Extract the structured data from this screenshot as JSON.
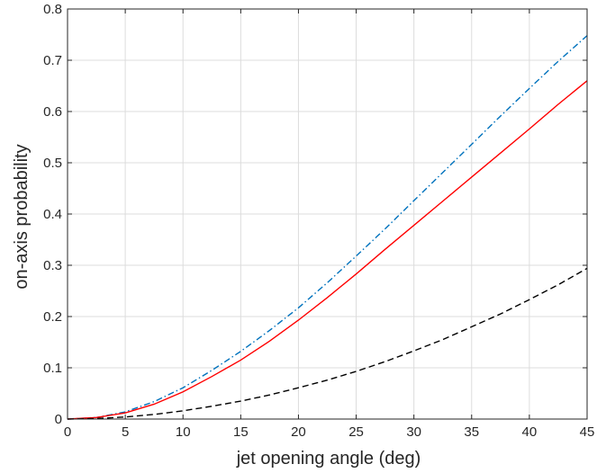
{
  "chart_data": {
    "type": "line",
    "title": "",
    "xlabel": "jet opening angle (deg)",
    "ylabel": "on-axis probability",
    "xlim": [
      0,
      45
    ],
    "ylim": [
      0,
      0.8
    ],
    "xticks": [
      0,
      5,
      10,
      15,
      20,
      25,
      30,
      35,
      40,
      45
    ],
    "yticks": [
      0,
      0.1,
      0.2,
      0.3,
      0.4,
      0.5,
      0.6,
      0.7,
      0.8
    ],
    "xtick_labels": [
      "0",
      "5",
      "10",
      "15",
      "20",
      "25",
      "30",
      "35",
      "40",
      "45"
    ],
    "ytick_labels": [
      "0",
      "0.1",
      "0.2",
      "0.3",
      "0.4",
      "0.5",
      "0.6",
      "0.7",
      "0.8"
    ],
    "grid": true,
    "legend": "none",
    "x": [
      0,
      2.5,
      5,
      7.5,
      10,
      12.5,
      15,
      17.5,
      20,
      22.5,
      25,
      27.5,
      30,
      32.5,
      35,
      37.5,
      40,
      42.5,
      45
    ],
    "series": [
      {
        "color": "#0072bd",
        "dash": "dash-dot",
        "values": [
          0,
          0.003,
          0.014,
          0.034,
          0.061,
          0.095,
          0.132,
          0.173,
          0.217,
          0.266,
          0.318,
          0.371,
          0.426,
          0.481,
          0.536,
          0.591,
          0.645,
          0.698,
          0.748
        ]
      },
      {
        "color": "#ff0000",
        "dash": "solid",
        "values": [
          0,
          0.003,
          0.012,
          0.029,
          0.053,
          0.083,
          0.115,
          0.152,
          0.193,
          0.237,
          0.283,
          0.331,
          0.378,
          0.425,
          0.472,
          0.519,
          0.566,
          0.614,
          0.66
        ]
      },
      {
        "color": "#000000",
        "dash": "dashed",
        "values": [
          0,
          0.001,
          0.004,
          0.009,
          0.016,
          0.025,
          0.035,
          0.047,
          0.061,
          0.076,
          0.093,
          0.112,
          0.133,
          0.155,
          0.18,
          0.205,
          0.233,
          0.262,
          0.294
        ]
      }
    ]
  }
}
